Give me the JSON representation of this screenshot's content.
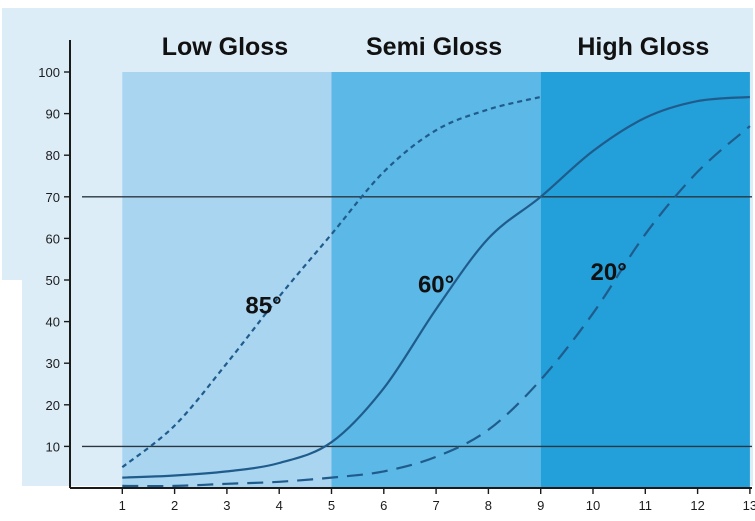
{
  "colors": {
    "background": "#dcedf8",
    "band_low": "#a9d5f1",
    "band_semi": "#5cb8e6",
    "band_high": "#239fd9",
    "curve": "#1f5c8c",
    "axis": "#1a1a1a",
    "reference_line": "#2a3640"
  },
  "chart_data": {
    "type": "line",
    "title": "",
    "xlabel": "",
    "ylabel": "",
    "xlim": [
      0,
      13
    ],
    "ylim": [
      0,
      100
    ],
    "x_ticks": [
      1,
      2,
      3,
      4,
      5,
      6,
      7,
      8,
      9,
      10,
      11,
      12,
      13
    ],
    "y_ticks": [
      10,
      20,
      30,
      40,
      50,
      60,
      70,
      80,
      90,
      100
    ],
    "grid": false,
    "bands": [
      {
        "label": "Low Gloss",
        "x_start": 1,
        "x_end": 5
      },
      {
        "label": "Semi Gloss",
        "x_start": 5,
        "x_end": 9
      },
      {
        "label": "High Gloss",
        "x_start": 9,
        "x_end": 13
      }
    ],
    "reference_lines": [
      10,
      70
    ],
    "series": [
      {
        "name": "85°",
        "style": "dotted",
        "label_point": [
          3.7,
          42
        ],
        "x": [
          1,
          2,
          3,
          4,
          5,
          6,
          7,
          8,
          9
        ],
        "y": [
          5,
          15,
          30,
          46,
          61,
          76,
          86,
          91,
          94
        ]
      },
      {
        "name": "60°",
        "style": "solid",
        "label_point": [
          7,
          47
        ],
        "x": [
          1,
          2,
          3,
          4,
          5,
          6,
          7,
          8,
          9,
          10,
          11,
          12,
          13
        ],
        "y": [
          2.5,
          3,
          4,
          6,
          11,
          24,
          43,
          60,
          70,
          81,
          89,
          93,
          94
        ]
      },
      {
        "name": "20°",
        "style": "dashed",
        "label_point": [
          10.3,
          50
        ],
        "x": [
          1,
          2,
          3,
          4,
          5,
          6,
          7,
          8,
          9,
          10,
          11,
          12,
          13
        ],
        "y": [
          0.5,
          0.5,
          1,
          1.5,
          2.5,
          4,
          7.5,
          14,
          26,
          42,
          61,
          76,
          87
        ]
      }
    ]
  }
}
